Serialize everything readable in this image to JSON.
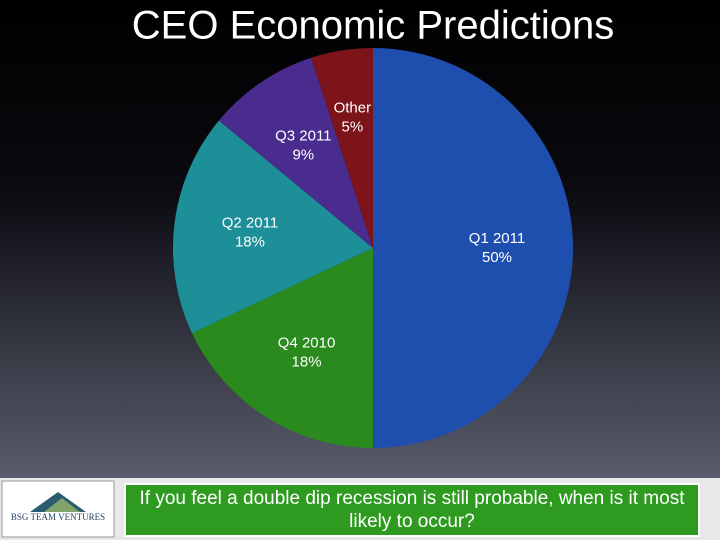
{
  "chart_data": {
    "type": "pie",
    "title": "CEO Economic Predictions",
    "categories": [
      "Q1 2011",
      "Q4 2010",
      "Q2 2011",
      "Q3 2011",
      "Other"
    ],
    "values": [
      50,
      18,
      18,
      9,
      5
    ],
    "value_labels": [
      "50%",
      "18%",
      "18%",
      "9%",
      "5%"
    ],
    "colors": [
      "#1f4fae",
      "#2a8a1e",
      "#1c8f98",
      "#4a2b8e",
      "#7c1419"
    ],
    "caption": "If you feel a double dip recession is still probable, when is it most likely to occur?",
    "logo": "BSG TEAM VENTURES"
  }
}
